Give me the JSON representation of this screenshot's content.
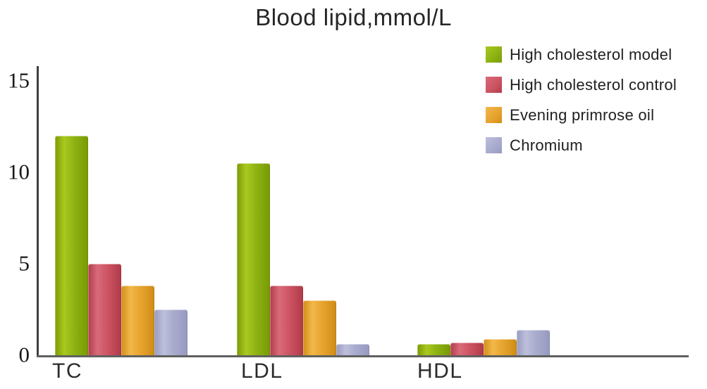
{
  "chart_data": {
    "type": "bar",
    "title": "Blood lipid,mmol/L",
    "categories": [
      "TC",
      "LDL",
      "HDL"
    ],
    "series": [
      {
        "name": "High cholesterol model",
        "color": "#8db314",
        "color_light": "#aac81f",
        "color_dark": "#7a9b04",
        "values": [
          12.0,
          10.5,
          0.6
        ]
      },
      {
        "name": "High cholesterol control",
        "color": "#cd5463",
        "color_light": "#d96a7a",
        "color_dark": "#b23c4b",
        "values": [
          5.0,
          3.8,
          0.7
        ]
      },
      {
        "name": "Evening primrose oil",
        "color": "#e7a42f",
        "color_light": "#f2b74b",
        "color_dark": "#d18e17",
        "values": [
          3.8,
          3.0,
          0.9
        ]
      },
      {
        "name": "Chromium",
        "color": "#a9abce",
        "color_light": "#bdbfdb",
        "color_dark": "#989ac1",
        "values": [
          2.5,
          0.6,
          1.4
        ]
      }
    ],
    "y_ticks": [
      0,
      5,
      10,
      15
    ],
    "ylim": [
      0,
      15
    ],
    "xlabel": "",
    "ylabel": "",
    "grid": false,
    "legend_position": "top-right"
  }
}
